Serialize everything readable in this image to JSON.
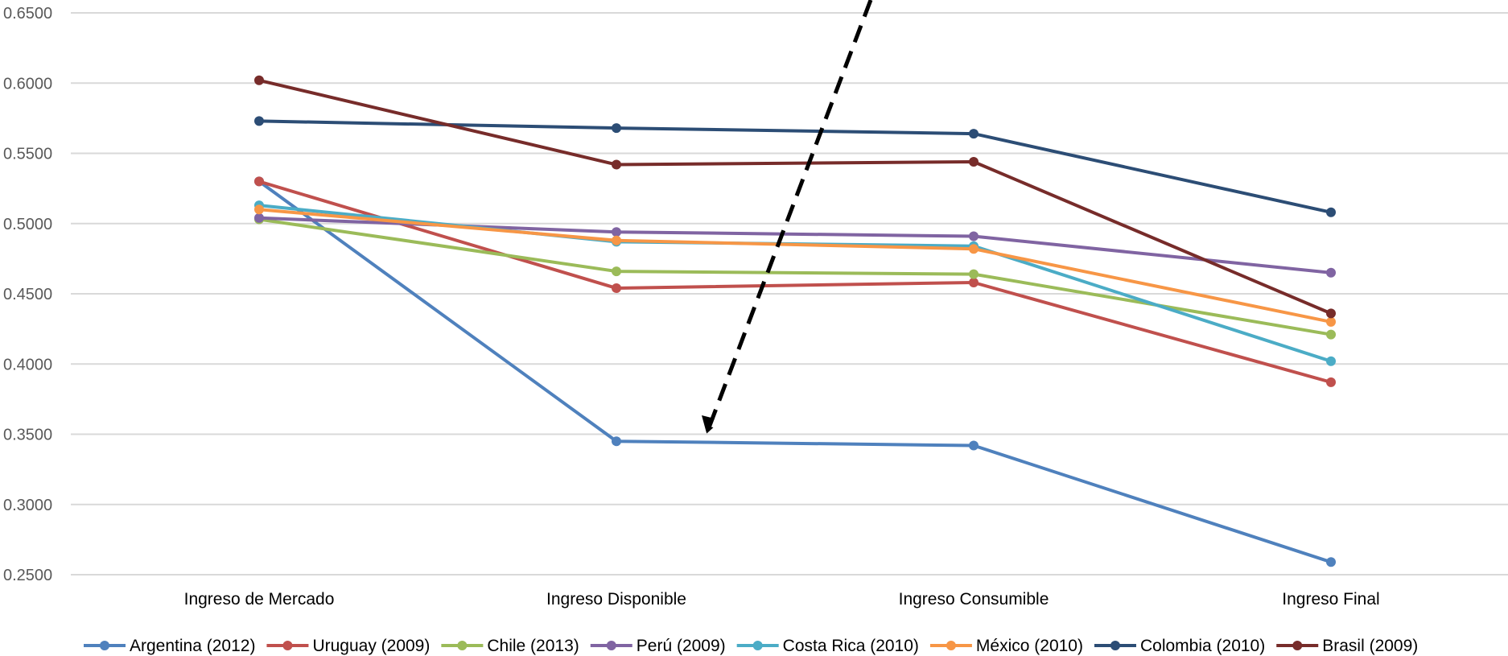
{
  "chart_data": {
    "type": "line",
    "categories": [
      "Ingreso de Mercado",
      "Ingreso Disponible",
      "Ingreso Consumible",
      "Ingreso Final"
    ],
    "yticks": [
      "0.2500",
      "0.3000",
      "0.3500",
      "0.4000",
      "0.4500",
      "0.5000",
      "0.5500",
      "0.6000",
      "0.6500"
    ],
    "ylim": [
      0.25,
      0.65
    ],
    "grid": true,
    "legend_position": "bottom",
    "series": [
      {
        "name": "Argentina (2012)",
        "color": "#4f81bd",
        "values": [
          0.53,
          0.345,
          0.342,
          0.259
        ]
      },
      {
        "name": "Uruguay (2009)",
        "color": "#c0504d",
        "values": [
          0.53,
          0.454,
          0.458,
          0.387
        ]
      },
      {
        "name": "Chile (2013)",
        "color": "#9bbb59",
        "values": [
          0.503,
          0.466,
          0.464,
          0.421
        ]
      },
      {
        "name": "Perú (2009)",
        "color": "#8064a2",
        "values": [
          0.504,
          0.494,
          0.491,
          0.465
        ]
      },
      {
        "name": "Costa Rica (2010)",
        "color": "#4bacc6",
        "values": [
          0.513,
          0.487,
          0.484,
          0.402
        ]
      },
      {
        "name": "México (2010)",
        "color": "#f79646",
        "values": [
          0.51,
          0.488,
          0.482,
          0.43
        ]
      },
      {
        "name": "Colombia (2010)",
        "color": "#2c4d75",
        "values": [
          0.573,
          0.568,
          0.564,
          0.508
        ]
      },
      {
        "name": "Brasil (2009)",
        "color": "#772c2a",
        "values": [
          0.602,
          0.542,
          0.544,
          0.436
        ]
      }
    ],
    "annotations": [
      {
        "type": "dashed-arrow",
        "color": "#000000"
      }
    ]
  }
}
